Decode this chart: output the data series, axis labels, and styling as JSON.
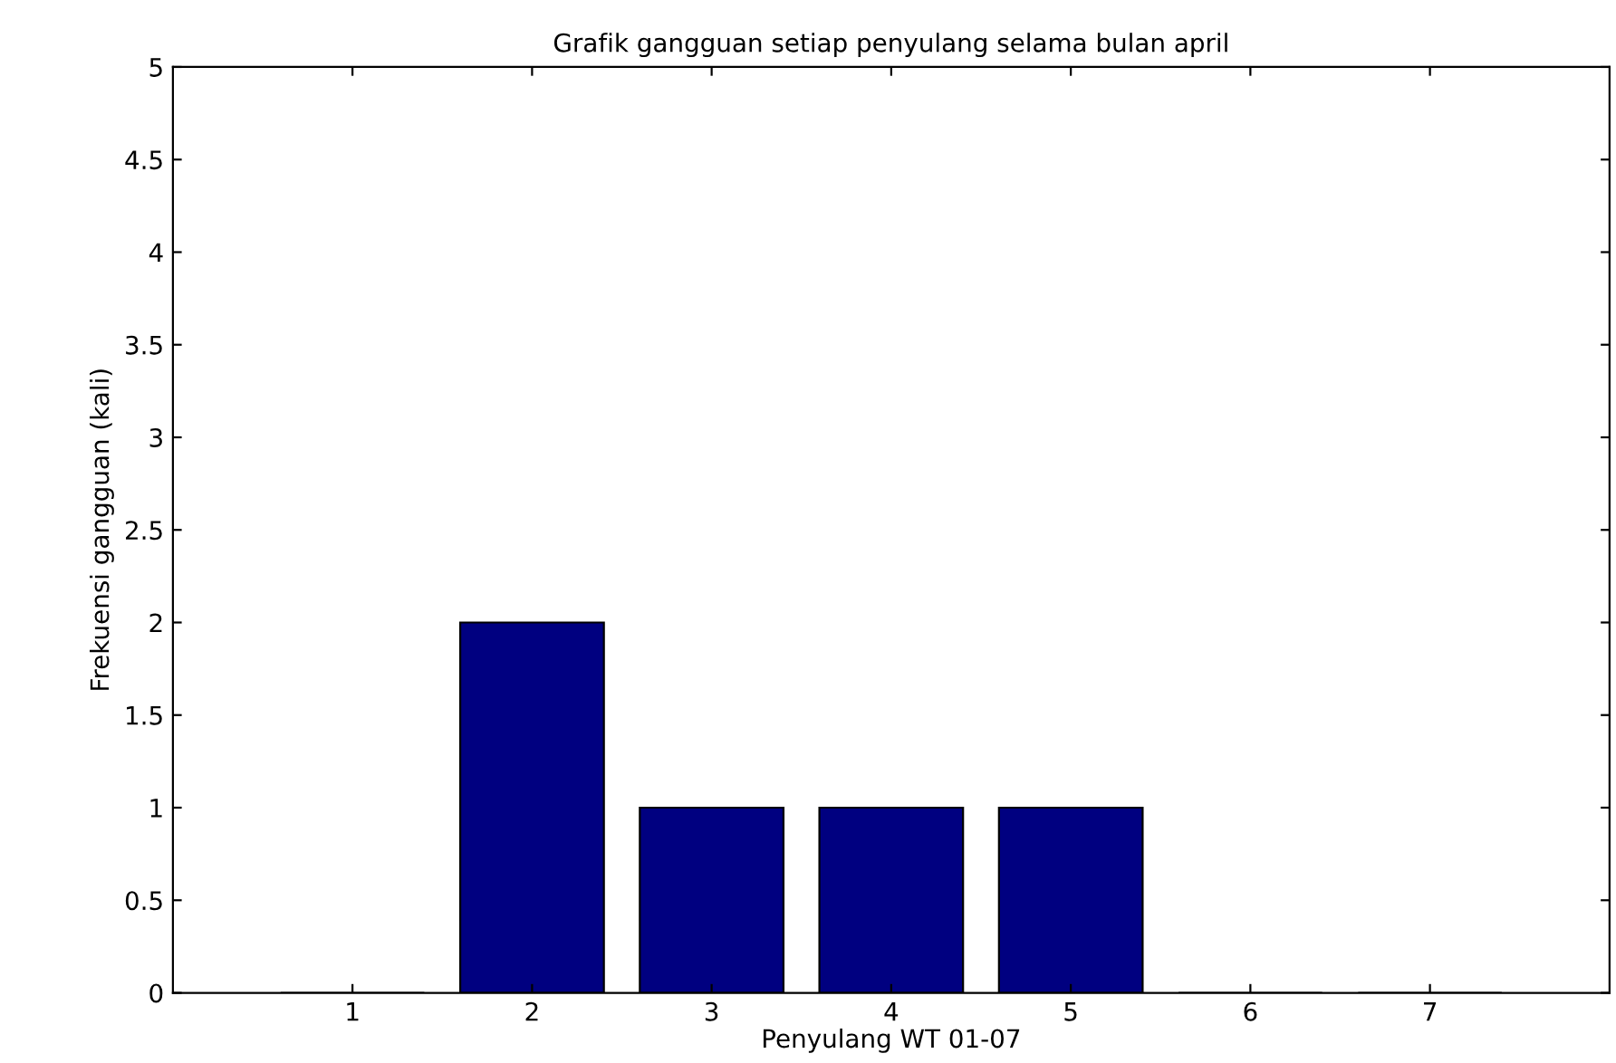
{
  "chart_data": {
    "type": "bar",
    "title": "Grafik gangguan setiap penyulang selama bulan april",
    "xlabel": "Penyulang WT 01-07",
    "ylabel": "Frekuensi gangguan (kali)",
    "x": [
      1,
      2,
      3,
      4,
      5,
      6,
      7
    ],
    "values": [
      0,
      2,
      1,
      1,
      1,
      0,
      0
    ],
    "color": "#000080",
    "xlim": [
      0,
      8
    ],
    "xticks": [
      1,
      2,
      3,
      4,
      5,
      6,
      7
    ],
    "ylim": [
      0,
      5
    ],
    "yticks": [
      0,
      0.5,
      1,
      1.5,
      2,
      2.5,
      3,
      3.5,
      4,
      4.5,
      5
    ],
    "grid": false,
    "legend": false
  }
}
